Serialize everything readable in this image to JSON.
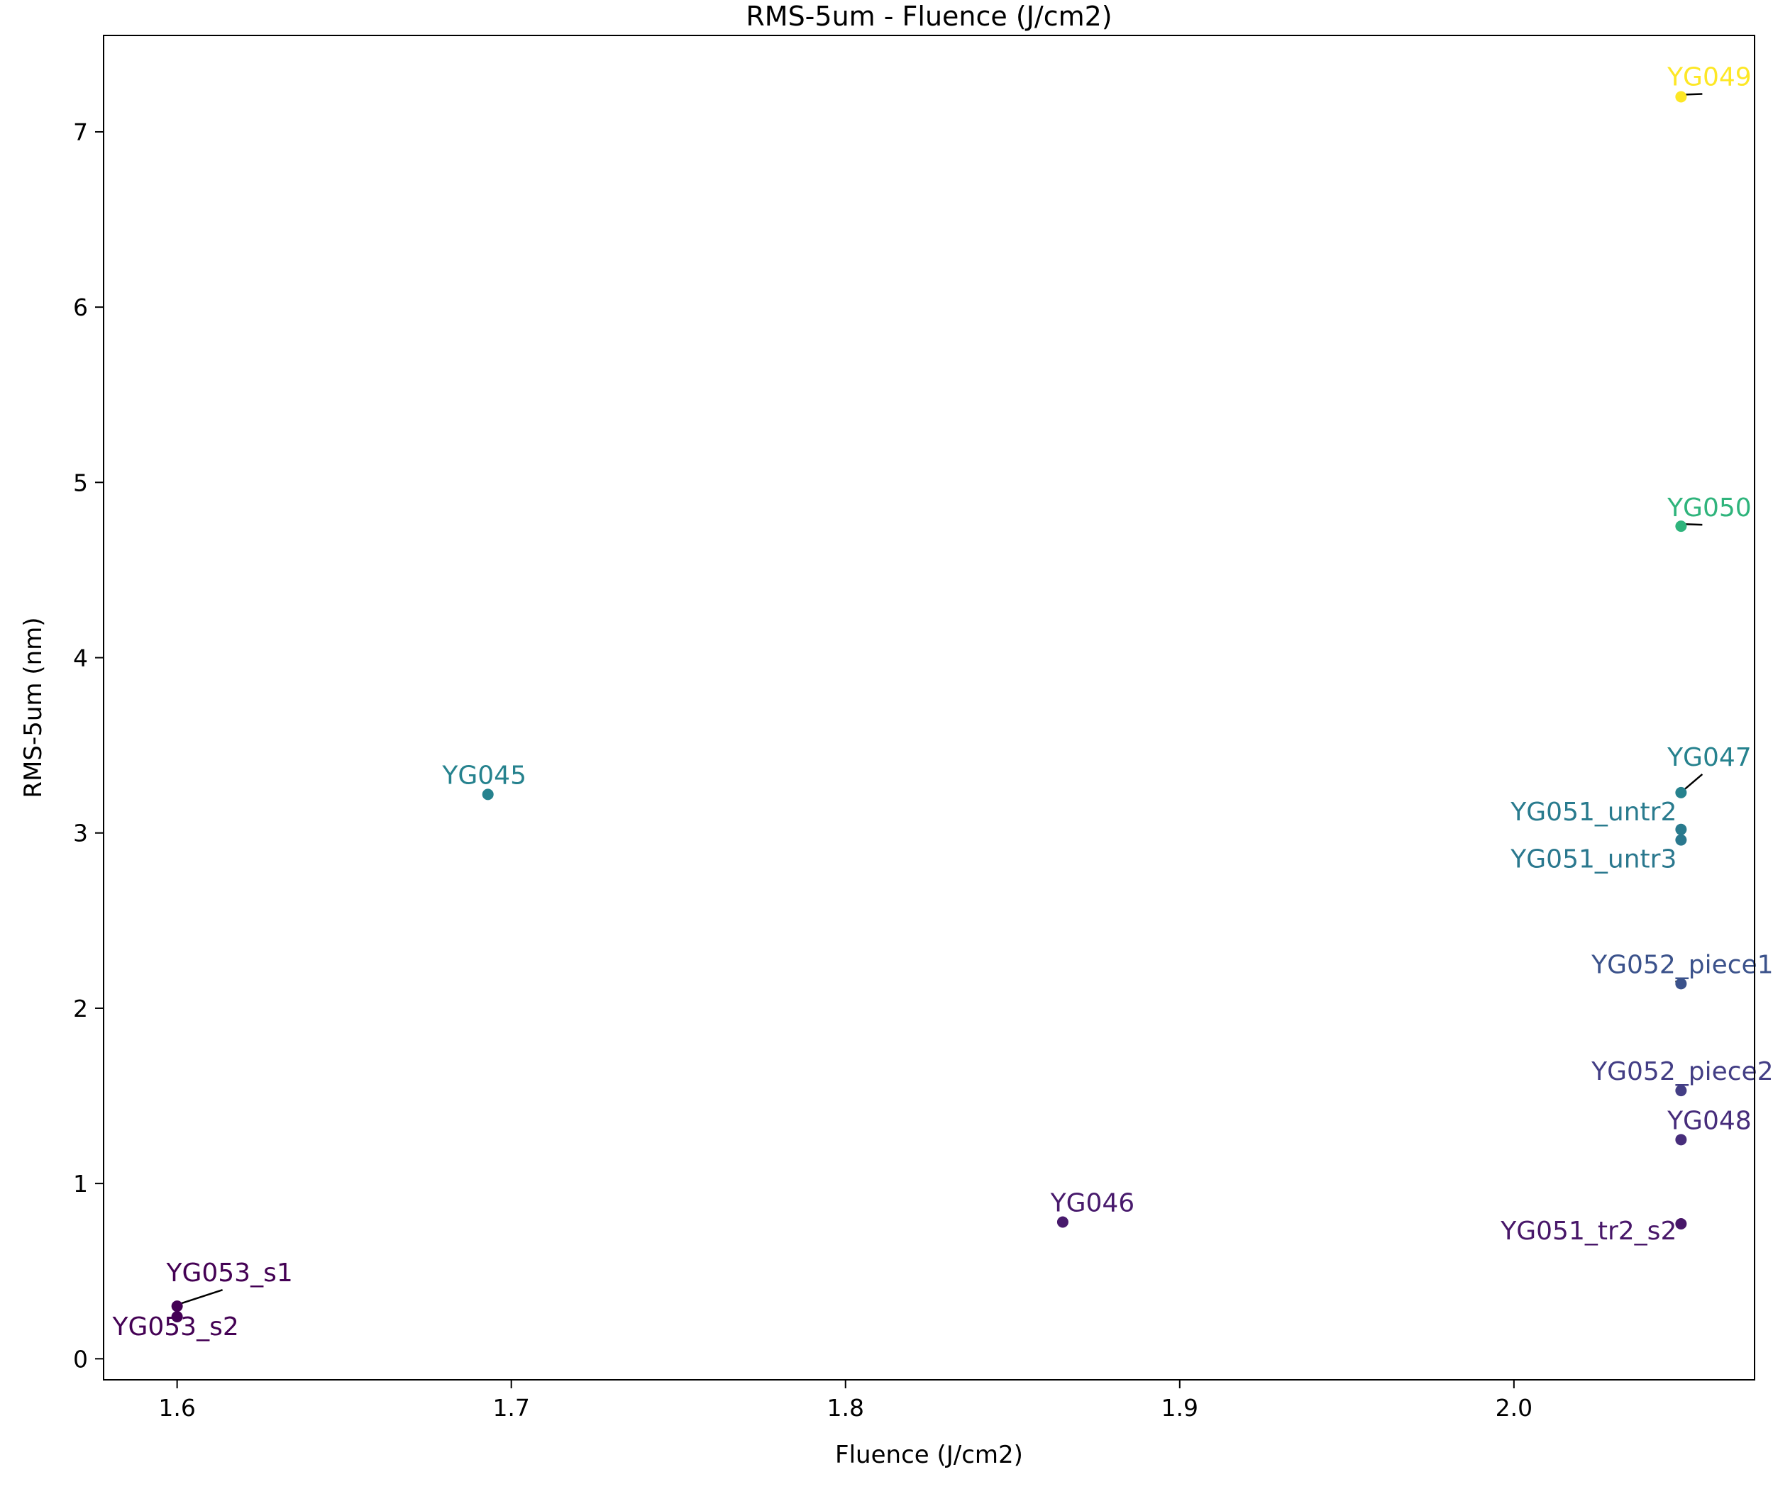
{
  "chart_data": {
    "type": "scatter",
    "title": "RMS-5um - Fluence (J/cm2)",
    "xlabel": "Fluence (J/cm2)",
    "ylabel": "RMS-5um (nm)",
    "xlim": [
      1.578,
      2.072
    ],
    "ylim": [
      -0.12,
      7.55
    ],
    "xticks": [
      1.6,
      1.7,
      1.8,
      1.9,
      2.0
    ],
    "xtick_labels": [
      "1.6",
      "1.7",
      "1.8",
      "1.9",
      "2.0"
    ],
    "yticks": [
      0,
      1,
      2,
      3,
      4,
      5,
      6,
      7
    ],
    "ytick_labels": [
      "0",
      "1",
      "2",
      "3",
      "4",
      "5",
      "6",
      "7"
    ],
    "grid": false,
    "legend": "none",
    "points": [
      {
        "label": "YG049",
        "x": 2.05,
        "y": 7.2,
        "color": "#fde725"
      },
      {
        "label": "YG050",
        "x": 2.05,
        "y": 4.75,
        "color": "#2fb47c"
      },
      {
        "label": "YG047",
        "x": 2.05,
        "y": 3.23,
        "color": "#26828e"
      },
      {
        "label": "YG051_untr2",
        "x": 2.05,
        "y": 3.02,
        "color": "#297b8e"
      },
      {
        "label": "YG051_untr3",
        "x": 2.05,
        "y": 2.96,
        "color": "#2a788e"
      },
      {
        "label": "YG045",
        "x": 1.693,
        "y": 3.22,
        "color": "#26828e"
      },
      {
        "label": "YG052_piece1",
        "x": 2.05,
        "y": 2.14,
        "color": "#3b528b"
      },
      {
        "label": "YG052_piece2",
        "x": 2.05,
        "y": 1.53,
        "color": "#433e85"
      },
      {
        "label": "YG048",
        "x": 2.05,
        "y": 1.25,
        "color": "#472d7b"
      },
      {
        "label": "YG046",
        "x": 1.865,
        "y": 0.78,
        "color": "#481a6c"
      },
      {
        "label": "YG051_tr2_s2",
        "x": 2.05,
        "y": 0.77,
        "color": "#481769"
      },
      {
        "label": "YG053_s1",
        "x": 1.6,
        "y": 0.3,
        "color": "#440154"
      },
      {
        "label": "YG053_s2",
        "x": 1.6,
        "y": 0.24,
        "color": "#440154"
      }
    ]
  }
}
